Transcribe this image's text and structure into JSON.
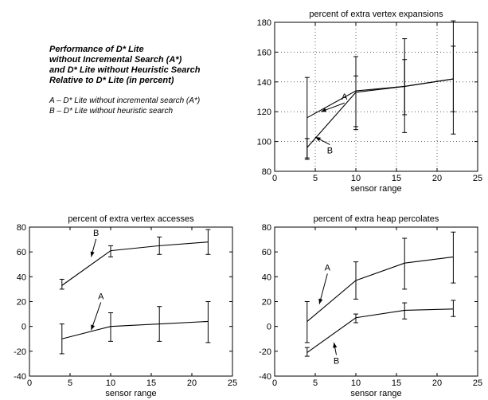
{
  "intro": {
    "title_lines": [
      "Performance of D* Lite",
      "without Incremental Search (A*)",
      "and D* Lite without Heuristic Search",
      "Relative to D* Lite (in percent)"
    ],
    "legend_lines": [
      "A – D* Lite without incremental search (A*)",
      "B – D* Lite without heuristic search"
    ]
  },
  "chart_data": [
    {
      "type": "line",
      "title": "percent of extra vertex expansions",
      "xlabel": "sensor range",
      "ylabel": "",
      "xlim": [
        0,
        25
      ],
      "ylim": [
        80,
        180
      ],
      "xticks": [
        0,
        5,
        10,
        15,
        20,
        25
      ],
      "yticks": [
        80,
        100,
        120,
        140,
        160,
        180
      ],
      "grid": true,
      "x": [
        4,
        10,
        16,
        22
      ],
      "series": [
        {
          "name": "A",
          "values": [
            116,
            134,
            137,
            142
          ],
          "err_low": [
            89,
            108,
            106,
            105
          ],
          "err_high": [
            143,
            157,
            169,
            181
          ]
        },
        {
          "name": "B",
          "values": [
            96,
            133,
            137,
            142
          ],
          "err_low": [
            88,
            110,
            118,
            120
          ],
          "err_high": [
            102,
            144,
            155,
            164
          ]
        }
      ],
      "annotations": [
        {
          "text": "A",
          "tx": 8.6,
          "ty": 128,
          "ax": 5.7,
          "ay": 120
        },
        {
          "text": "B",
          "tx": 6.8,
          "ty": 92,
          "ax": 5.0,
          "ay": 103
        }
      ]
    },
    {
      "type": "line",
      "title": "percent of extra vertex accesses",
      "xlabel": "sensor range",
      "ylabel": "",
      "xlim": [
        0,
        25
      ],
      "ylim": [
        -40,
        80
      ],
      "xticks": [
        0,
        5,
        10,
        15,
        20,
        25
      ],
      "yticks": [
        -40,
        -20,
        0,
        20,
        40,
        60,
        80
      ],
      "grid": false,
      "x": [
        4,
        10,
        16,
        22
      ],
      "series": [
        {
          "name": "B",
          "values": [
            33,
            61,
            65,
            68
          ],
          "err_low": [
            30,
            56,
            58,
            58
          ],
          "err_high": [
            38,
            65,
            72,
            78
          ]
        },
        {
          "name": "A",
          "values": [
            -10,
            0,
            2,
            4
          ],
          "err_low": [
            -22,
            -12,
            -12,
            -13
          ],
          "err_high": [
            2,
            11,
            16,
            20
          ]
        }
      ],
      "annotations": [
        {
          "text": "B",
          "tx": 8.2,
          "ty": 73,
          "ax": 7.6,
          "ay": 56
        },
        {
          "text": "A",
          "tx": 8.8,
          "ty": 22,
          "ax": 7.6,
          "ay": -3
        }
      ]
    },
    {
      "type": "line",
      "title": "percent of extra heap percolates",
      "xlabel": "sensor range",
      "ylabel": "",
      "xlim": [
        0,
        25
      ],
      "ylim": [
        -40,
        80
      ],
      "xticks": [
        0,
        5,
        10,
        15,
        20,
        25
      ],
      "yticks": [
        -40,
        -20,
        0,
        20,
        40,
        60,
        80
      ],
      "grid": false,
      "x": [
        4,
        10,
        16,
        22
      ],
      "series": [
        {
          "name": "A",
          "values": [
            4,
            37,
            51,
            56
          ],
          "err_low": [
            -13,
            22,
            30,
            35
          ],
          "err_high": [
            20,
            52,
            71,
            76
          ]
        },
        {
          "name": "B",
          "values": [
            -21,
            7,
            13,
            14
          ],
          "err_low": [
            -24,
            3,
            6,
            8
          ],
          "err_high": [
            -17,
            10,
            19,
            21
          ]
        }
      ],
      "annotations": [
        {
          "text": "A",
          "tx": 6.5,
          "ty": 45,
          "ax": 5.5,
          "ay": 18
        },
        {
          "text": "B",
          "tx": 7.6,
          "ty": -30,
          "ax": 7.3,
          "ay": -13
        }
      ]
    }
  ]
}
